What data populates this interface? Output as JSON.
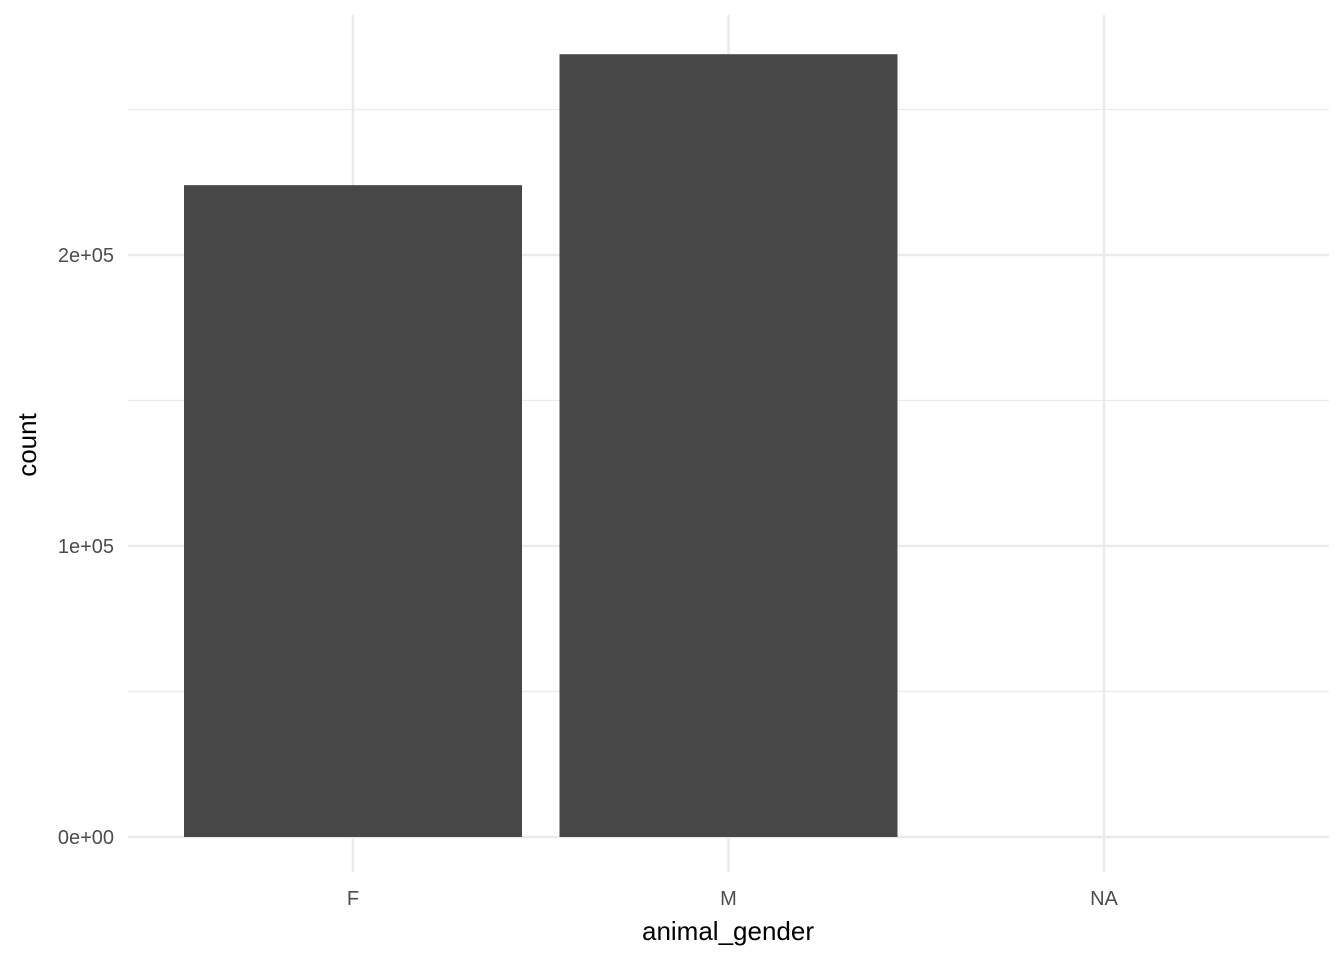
{
  "chart_data": {
    "type": "bar",
    "title": "",
    "xlabel": "animal_gender",
    "ylabel": "count",
    "categories": [
      "F",
      "M",
      "NA"
    ],
    "values": [
      224000,
      269000,
      0
    ],
    "ylim": [
      0,
      280000
    ],
    "yticks": [
      0,
      100000,
      200000
    ],
    "ytick_labels": [
      "0e+00",
      "1e+05",
      "2e+05"
    ],
    "grid": true,
    "legend": "none",
    "bar_color": "#474747",
    "grid_color": "#ebebeb"
  }
}
